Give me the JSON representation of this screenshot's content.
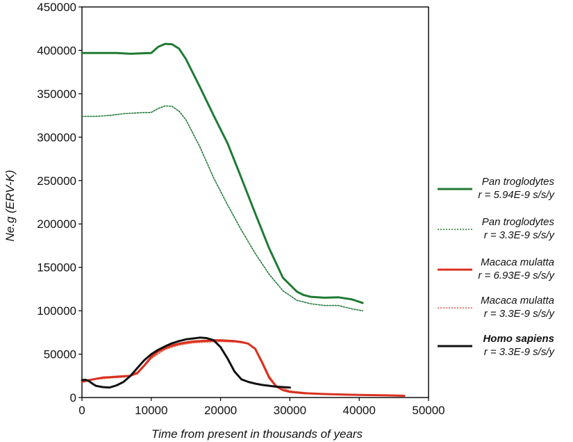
{
  "chart_data": {
    "type": "line",
    "xlabel": "Time from present in thousands of years",
    "ylabel": "Ne.g (ERV-K)",
    "xlim": [
      0,
      50000
    ],
    "ylim": [
      0,
      450000
    ],
    "xticks": [
      0,
      10000,
      20000,
      30000,
      40000,
      50000
    ],
    "yticks": [
      0,
      50000,
      100000,
      150000,
      200000,
      250000,
      300000,
      350000,
      400000,
      450000
    ],
    "grid": false,
    "legend_position": "right",
    "series": [
      {
        "name": "Pan troglodytes",
        "rate": "r = 5.94E-9 s/s/y",
        "color": "#1f7a35",
        "style": "solid",
        "x": [
          0,
          3000,
          5000,
          7000,
          8500,
          10000,
          11000,
          12000,
          13000,
          14000,
          15000,
          17000,
          19000,
          21000,
          23000,
          25000,
          27000,
          29000,
          31000,
          32000,
          33000,
          35000,
          37000,
          39000,
          40500
        ],
        "y": [
          397000,
          397000,
          397000,
          396000,
          396500,
          397000,
          404000,
          407500,
          407000,
          402000,
          390000,
          358000,
          325000,
          293000,
          253000,
          212000,
          172000,
          138000,
          122000,
          118000,
          116000,
          115000,
          115500,
          113000,
          109000
        ]
      },
      {
        "name": "Pan troglodytes",
        "rate": "r = 3.3E-9 s/s/y",
        "color": "#1f7a35",
        "style": "dotted",
        "x": [
          0,
          2000,
          4000,
          6000,
          8000,
          10000,
          11000,
          12000,
          13000,
          14000,
          15000,
          17000,
          19000,
          21000,
          23000,
          25000,
          27000,
          29000,
          31000,
          33000,
          35000,
          37000,
          39000,
          40500
        ],
        "y": [
          324000,
          324000,
          325000,
          327000,
          328000,
          328500,
          333000,
          336000,
          335500,
          330000,
          320000,
          289000,
          253000,
          222000,
          193000,
          166000,
          142000,
          123000,
          112000,
          108000,
          106000,
          106000,
          102000,
          100000
        ]
      },
      {
        "name": "Macaca mulatta",
        "rate": "r = 6.93E-9 s/s/y",
        "color": "#d9301f",
        "style": "solid",
        "x": [
          0,
          1000,
          2000,
          3000,
          4000,
          5000,
          6000,
          7000,
          8000,
          9000,
          10000,
          11000,
          12000,
          13000,
          14000,
          15000,
          16000,
          17000,
          18000,
          19000,
          20000,
          21000,
          22000,
          23000,
          24000,
          25000,
          26000,
          27000,
          28000,
          29000,
          30000,
          32000,
          35000,
          40000,
          44000,
          46500
        ],
        "y": [
          18000,
          20000,
          21500,
          23000,
          23500,
          24000,
          24500,
          25000,
          28500,
          37000,
          47000,
          53000,
          57000,
          60000,
          62000,
          63500,
          64500,
          65000,
          65500,
          66000,
          66000,
          65500,
          65000,
          64000,
          62000,
          56000,
          40000,
          23000,
          13000,
          8500,
          6500,
          5000,
          4000,
          3000,
          2500,
          2000
        ]
      },
      {
        "name": "Macaca mulatta",
        "rate": "r = 3.3E-9 s/s/y",
        "color": "#e8553d",
        "style": "dotted",
        "x": [
          0,
          2000,
          4000,
          6000,
          8000,
          10000,
          12000,
          14000,
          16000,
          18000,
          20000,
          22000,
          24000,
          25000,
          26000,
          27000,
          28000,
          30000,
          33000,
          36000
        ],
        "y": [
          18500,
          21000,
          22500,
          23500,
          27000,
          45000,
          55500,
          60500,
          63000,
          64000,
          64500,
          64000,
          62000,
          57000,
          42000,
          25000,
          14000,
          7500,
          5000,
          4000
        ]
      },
      {
        "name": "Homo sapiens",
        "rate": "r = 3.3E-9 s/s/y",
        "color": "#111111",
        "style": "solid",
        "x": [
          0,
          500,
          1000,
          1500,
          2000,
          3000,
          4000,
          5000,
          6000,
          7000,
          8000,
          9000,
          10000,
          11000,
          12000,
          13000,
          14000,
          15000,
          16000,
          17000,
          18000,
          19000,
          20000,
          21000,
          22000,
          23000,
          24000,
          25000,
          26000,
          27000,
          28000,
          29000,
          30000
        ],
        "y": [
          20000,
          20500,
          19000,
          16000,
          13500,
          12000,
          11500,
          14000,
          18000,
          25000,
          34000,
          43000,
          50000,
          55000,
          59000,
          62500,
          65000,
          67000,
          68000,
          69000,
          68500,
          66000,
          58000,
          45000,
          30000,
          21000,
          18000,
          16000,
          14500,
          13500,
          12500,
          12000,
          11500
        ]
      }
    ]
  }
}
